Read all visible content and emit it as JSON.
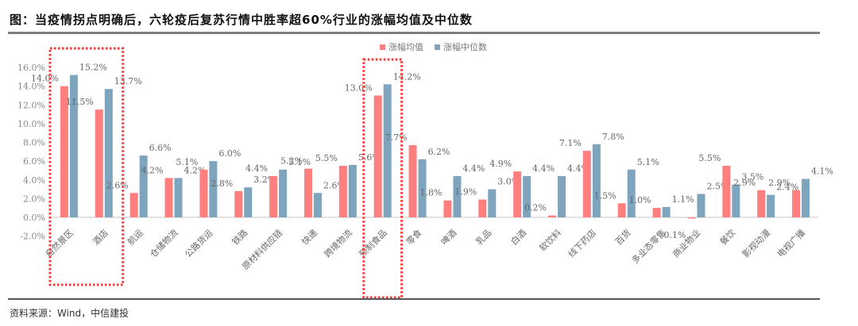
{
  "header": {
    "title": "图：当疫情拐点明确后，六轮疫后复苏行情中胜率超60%行业的涨幅均值及中位数"
  },
  "footer": {
    "source": "资料来源：Wind，中信建投"
  },
  "legend": {
    "items": [
      {
        "label": "涨幅均值",
        "color": "#FF7F7F"
      },
      {
        "label": "涨幅中位数",
        "color": "#7FA4BE"
      }
    ]
  },
  "highlights": [
    {
      "categories": [
        "自然景区",
        "酒店"
      ],
      "color": "#FF3333",
      "style": "dotted"
    },
    {
      "categories": [
        "预制食品"
      ],
      "color": "#FF3333",
      "style": "dotted"
    }
  ],
  "chart_data": {
    "type": "bar",
    "title": "当疫情拐点明确后，六轮疫后复苏行情中胜率超60%行业的涨幅均值及中位数",
    "xlabel": "",
    "ylabel": "",
    "ylim": [
      -2.0,
      16.0
    ],
    "yticks": [
      "-2.0%",
      "0.0%",
      "2.0%",
      "4.0%",
      "6.0%",
      "8.0%",
      "10.0%",
      "12.0%",
      "14.0%",
      "16.0%"
    ],
    "grid": false,
    "legend_position": "top",
    "categories": [
      "自然景区",
      "酒店",
      "航运",
      "仓储物流",
      "公路货运",
      "铁路",
      "原材料供应链",
      "快递",
      "跨境物流",
      "预制食品",
      "零食",
      "啤酒",
      "乳品",
      "白酒",
      "软饮料",
      "线下药店",
      "百货",
      "多业态零售",
      "商业物业",
      "餐饮",
      "影视动漫",
      "电视广播"
    ],
    "series": [
      {
        "name": "涨幅均值",
        "color": "#FF7F7F",
        "values": [
          14.0,
          11.5,
          2.6,
          4.2,
          5.1,
          2.8,
          4.4,
          5.2,
          5.5,
          13.0,
          7.7,
          1.8,
          1.9,
          4.9,
          0.2,
          7.1,
          1.5,
          1.0,
          -0.1,
          5.5,
          2.9,
          2.9
        ]
      },
      {
        "name": "涨幅中位数",
        "color": "#7FA4BE",
        "values": [
          15.2,
          13.7,
          6.6,
          4.2,
          6.0,
          3.2,
          5.1,
          2.6,
          5.6,
          14.2,
          6.2,
          4.4,
          3.0,
          4.4,
          4.4,
          7.8,
          5.1,
          1.1,
          2.5,
          3.5,
          2.4,
          4.1
        ]
      }
    ],
    "data_labels": {
      "mean": [
        "14.0%",
        "11.5%",
        "2.6%",
        "4.2%",
        "5.1%",
        "2.8%",
        "4.4%",
        "5.2%",
        "5.5%",
        "13.0%",
        "7.7%",
        "1.8%",
        "1.9%",
        "4.9%",
        "0.2%",
        "7.1%",
        "1.5%",
        "1.0%",
        "-0.1%",
        "5.5%",
        "2.9%",
        "2.9%"
      ],
      "median": [
        "15.2%",
        "13.7%",
        "6.6%",
        "4.2%",
        "6.0%",
        "3.2%",
        "5.1%",
        "2.6%",
        "5.6%",
        "14.2%",
        "6.2%",
        "4.4%",
        "3.0%",
        "4.4%",
        "4.4%",
        "7.8%",
        "5.1%",
        "1.1%",
        "2.5%",
        "3.5%",
        "2.4%",
        "4.1%"
      ]
    }
  }
}
